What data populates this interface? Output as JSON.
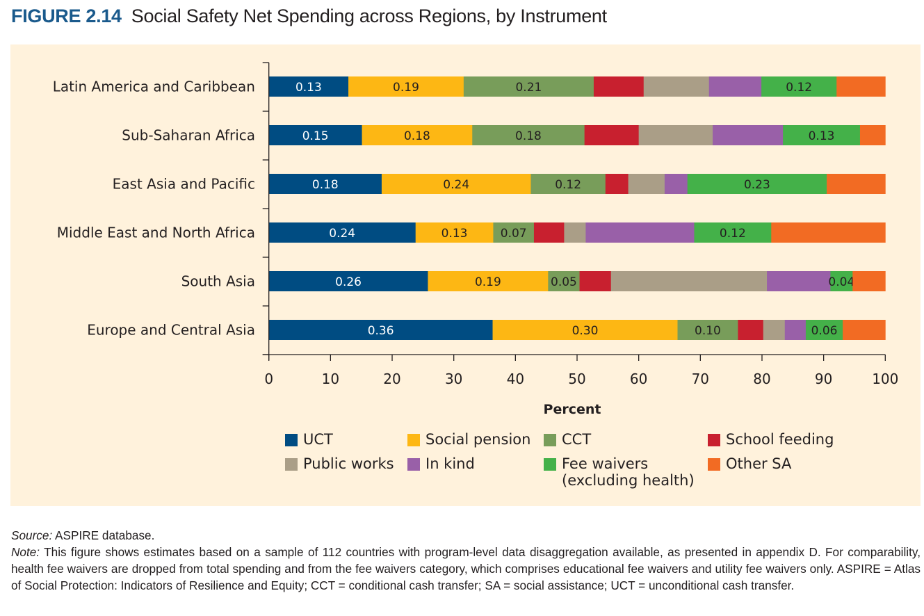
{
  "figure": {
    "number": "FIGURE 2.14",
    "title": "Social Safety Net Spending across Regions, by Instrument"
  },
  "chart_data": {
    "type": "bar",
    "orientation": "horizontal",
    "stacked": true,
    "title": "Social Safety Net Spending across Regions, by Instrument",
    "xlabel": "Percent",
    "ylabel": "",
    "xlim": [
      0,
      100
    ],
    "xticks": [
      "0",
      "10",
      "20",
      "30",
      "40",
      "50",
      "60",
      "70",
      "80",
      "90",
      "100"
    ],
    "grid": false,
    "legend_position": "bottom",
    "categories": [
      "Latin America and Caribbean",
      "Sub-Saharan Africa",
      "East Asia and Pacific",
      "Middle East and North Africa",
      "South Asia",
      "Europe and Central Asia"
    ],
    "series": [
      {
        "name": "UCT",
        "color": "#004c82",
        "label_color": "#ffffff",
        "values": [
          12.9,
          15.1,
          18.3,
          23.8,
          25.8,
          36.3
        ],
        "labels": [
          "0.13",
          "0.15",
          "0.18",
          "0.24",
          "0.26",
          "0.36"
        ]
      },
      {
        "name": "Social pension",
        "color": "#fdb714",
        "label_color": "#231f20",
        "values": [
          18.7,
          17.9,
          24.2,
          12.6,
          19.5,
          30.0
        ],
        "labels": [
          "0.19",
          "0.18",
          "0.24",
          "0.13",
          "0.19",
          "0.30"
        ]
      },
      {
        "name": "CCT",
        "color": "#789d5a",
        "label_color": "#231f20",
        "values": [
          21.1,
          18.2,
          12.1,
          6.6,
          5.1,
          9.8
        ],
        "labels": [
          "0.21",
          "0.18",
          "0.12",
          "0.07",
          "0.05",
          "0.10"
        ]
      },
      {
        "name": "School feeding",
        "color": "#c8202f",
        "label_color": "#231f20",
        "values": [
          8.1,
          8.8,
          3.7,
          4.9,
          5.1,
          4.1
        ],
        "labels": [
          "",
          "",
          "",
          "",
          "",
          ""
        ]
      },
      {
        "name": "Public works",
        "color": "#aa9e87",
        "label_color": "#231f20",
        "values": [
          10.6,
          12.0,
          5.9,
          3.5,
          25.3,
          3.5
        ],
        "labels": [
          "",
          "",
          "",
          "",
          "",
          ""
        ]
      },
      {
        "name": "In kind",
        "color": "#9960a8",
        "label_color": "#231f20",
        "values": [
          8.5,
          11.4,
          3.7,
          17.6,
          10.3,
          3.4
        ],
        "labels": [
          "",
          "",
          "",
          "",
          "",
          ""
        ]
      },
      {
        "name": "Fee waivers (excluding health)",
        "color": "#44b149",
        "label_color": "#231f20",
        "values": [
          12.2,
          12.5,
          22.6,
          12.5,
          3.6,
          6.0
        ],
        "labels": [
          "0.12",
          "0.13",
          "0.23",
          "0.12",
          "0.04",
          "0.06"
        ]
      },
      {
        "name": "Other SA",
        "color": "#f26b23",
        "label_color": "#231f20",
        "values": [
          7.9,
          4.1,
          9.5,
          18.5,
          5.3,
          6.9
        ],
        "labels": [
          "",
          "",
          "",
          "",
          "",
          ""
        ]
      }
    ]
  },
  "legend": [
    {
      "label": "UCT",
      "color": "#004c82"
    },
    {
      "label": "Social pension",
      "color": "#fdb714"
    },
    {
      "label": "CCT",
      "color": "#789d5a"
    },
    {
      "label": "School feeding",
      "color": "#c8202f"
    },
    {
      "label": "Public works",
      "color": "#aa9e87"
    },
    {
      "label": "In kind",
      "color": "#9960a8"
    },
    {
      "label": "Fee waivers",
      "label_line2": "(excluding health)",
      "color": "#44b149"
    },
    {
      "label": "Other SA",
      "color": "#f26b23"
    }
  ],
  "source": {
    "source_label": "Source:",
    "source_text": " ASPIRE database.",
    "note_label": "Note:",
    "note_text": " This figure shows estimates based on a sample of 112 countries with program-level data disaggregation available, as presented in appendix D. For comparability, health fee waivers are dropped from total spending and from the fee waivers category, which comprises educational fee waivers and utility fee waivers only. ASPIRE = Atlas of Social Protection: Indicators of Resilience and Equity; CCT = conditional cash transfer; SA = social assistance; UCT = unconditional cash transfer."
  }
}
